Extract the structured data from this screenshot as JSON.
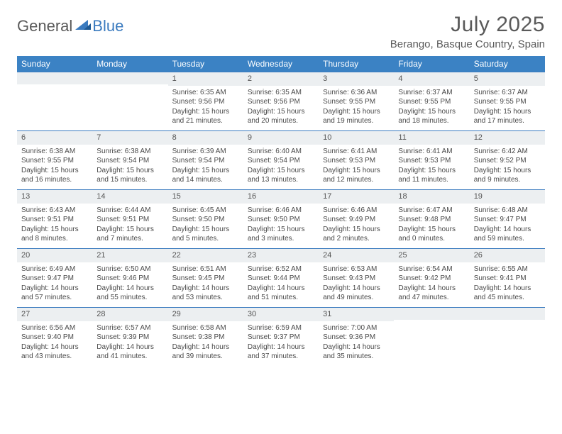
{
  "logo": {
    "general": "General",
    "blue": "Blue"
  },
  "title": "July 2025",
  "location": "Berango, Basque Country, Spain",
  "day_headers": [
    "Sunday",
    "Monday",
    "Tuesday",
    "Wednesday",
    "Thursday",
    "Friday",
    "Saturday"
  ],
  "colors": {
    "header_bg": "#3b82c4",
    "header_text": "#ffffff",
    "rule": "#3b7bbf",
    "daynum_bg": "#eceff1",
    "text": "#4a4a4a",
    "title_text": "#5a5a5a"
  },
  "weeks": [
    [
      {
        "n": "",
        "sr": "",
        "ss": "",
        "dl": ""
      },
      {
        "n": "",
        "sr": "",
        "ss": "",
        "dl": ""
      },
      {
        "n": "1",
        "sr": "6:35 AM",
        "ss": "9:56 PM",
        "dl": "15 hours and 21 minutes."
      },
      {
        "n": "2",
        "sr": "6:35 AM",
        "ss": "9:56 PM",
        "dl": "15 hours and 20 minutes."
      },
      {
        "n": "3",
        "sr": "6:36 AM",
        "ss": "9:55 PM",
        "dl": "15 hours and 19 minutes."
      },
      {
        "n": "4",
        "sr": "6:37 AM",
        "ss": "9:55 PM",
        "dl": "15 hours and 18 minutes."
      },
      {
        "n": "5",
        "sr": "6:37 AM",
        "ss": "9:55 PM",
        "dl": "15 hours and 17 minutes."
      }
    ],
    [
      {
        "n": "6",
        "sr": "6:38 AM",
        "ss": "9:55 PM",
        "dl": "15 hours and 16 minutes."
      },
      {
        "n": "7",
        "sr": "6:38 AM",
        "ss": "9:54 PM",
        "dl": "15 hours and 15 minutes."
      },
      {
        "n": "8",
        "sr": "6:39 AM",
        "ss": "9:54 PM",
        "dl": "15 hours and 14 minutes."
      },
      {
        "n": "9",
        "sr": "6:40 AM",
        "ss": "9:54 PM",
        "dl": "15 hours and 13 minutes."
      },
      {
        "n": "10",
        "sr": "6:41 AM",
        "ss": "9:53 PM",
        "dl": "15 hours and 12 minutes."
      },
      {
        "n": "11",
        "sr": "6:41 AM",
        "ss": "9:53 PM",
        "dl": "15 hours and 11 minutes."
      },
      {
        "n": "12",
        "sr": "6:42 AM",
        "ss": "9:52 PM",
        "dl": "15 hours and 9 minutes."
      }
    ],
    [
      {
        "n": "13",
        "sr": "6:43 AM",
        "ss": "9:51 PM",
        "dl": "15 hours and 8 minutes."
      },
      {
        "n": "14",
        "sr": "6:44 AM",
        "ss": "9:51 PM",
        "dl": "15 hours and 7 minutes."
      },
      {
        "n": "15",
        "sr": "6:45 AM",
        "ss": "9:50 PM",
        "dl": "15 hours and 5 minutes."
      },
      {
        "n": "16",
        "sr": "6:46 AM",
        "ss": "9:50 PM",
        "dl": "15 hours and 3 minutes."
      },
      {
        "n": "17",
        "sr": "6:46 AM",
        "ss": "9:49 PM",
        "dl": "15 hours and 2 minutes."
      },
      {
        "n": "18",
        "sr": "6:47 AM",
        "ss": "9:48 PM",
        "dl": "15 hours and 0 minutes."
      },
      {
        "n": "19",
        "sr": "6:48 AM",
        "ss": "9:47 PM",
        "dl": "14 hours and 59 minutes."
      }
    ],
    [
      {
        "n": "20",
        "sr": "6:49 AM",
        "ss": "9:47 PM",
        "dl": "14 hours and 57 minutes."
      },
      {
        "n": "21",
        "sr": "6:50 AM",
        "ss": "9:46 PM",
        "dl": "14 hours and 55 minutes."
      },
      {
        "n": "22",
        "sr": "6:51 AM",
        "ss": "9:45 PM",
        "dl": "14 hours and 53 minutes."
      },
      {
        "n": "23",
        "sr": "6:52 AM",
        "ss": "9:44 PM",
        "dl": "14 hours and 51 minutes."
      },
      {
        "n": "24",
        "sr": "6:53 AM",
        "ss": "9:43 PM",
        "dl": "14 hours and 49 minutes."
      },
      {
        "n": "25",
        "sr": "6:54 AM",
        "ss": "9:42 PM",
        "dl": "14 hours and 47 minutes."
      },
      {
        "n": "26",
        "sr": "6:55 AM",
        "ss": "9:41 PM",
        "dl": "14 hours and 45 minutes."
      }
    ],
    [
      {
        "n": "27",
        "sr": "6:56 AM",
        "ss": "9:40 PM",
        "dl": "14 hours and 43 minutes."
      },
      {
        "n": "28",
        "sr": "6:57 AM",
        "ss": "9:39 PM",
        "dl": "14 hours and 41 minutes."
      },
      {
        "n": "29",
        "sr": "6:58 AM",
        "ss": "9:38 PM",
        "dl": "14 hours and 39 minutes."
      },
      {
        "n": "30",
        "sr": "6:59 AM",
        "ss": "9:37 PM",
        "dl": "14 hours and 37 minutes."
      },
      {
        "n": "31",
        "sr": "7:00 AM",
        "ss": "9:36 PM",
        "dl": "14 hours and 35 minutes."
      },
      {
        "n": "",
        "sr": "",
        "ss": "",
        "dl": ""
      },
      {
        "n": "",
        "sr": "",
        "ss": "",
        "dl": ""
      }
    ]
  ],
  "labels": {
    "sunrise": "Sunrise:",
    "sunset": "Sunset:",
    "daylight": "Daylight:"
  }
}
